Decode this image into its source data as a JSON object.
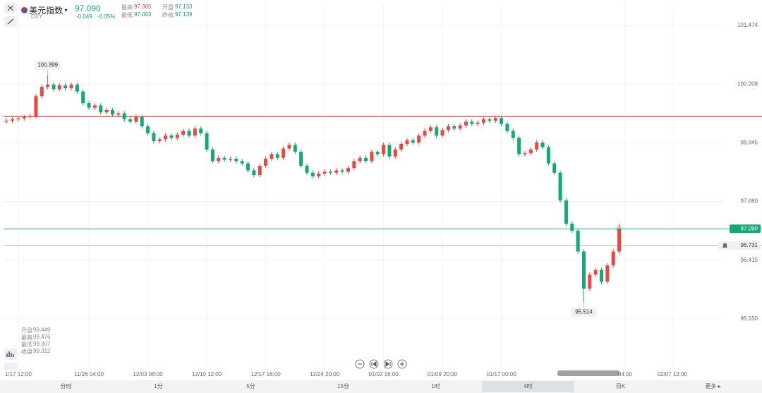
{
  "chart_data": {
    "type": "candlestick",
    "symbol": "美元指数",
    "code": "DXY",
    "last": "97.090",
    "change": "-0.049",
    "change_pct": "-0.05%",
    "stats": [
      {
        "label": "最高",
        "value": "97.305"
      },
      {
        "label": "开盘",
        "value": "97.133"
      },
      {
        "label": "最低",
        "value": "97.003"
      },
      {
        "label": "昨收",
        "value": "97.139"
      }
    ],
    "ohlc_info": [
      {
        "label": "开盘",
        "value": "99.449"
      },
      {
        "label": "最高",
        "value": "99.476"
      },
      {
        "label": "最低",
        "value": "99.307"
      },
      {
        "label": "收盘",
        "value": "99.312"
      }
    ],
    "categories": [
      null,
      null,
      "1/17 12:00",
      null,
      null,
      null,
      null,
      null,
      null,
      null,
      null,
      null,
      null,
      null,
      "11/26 04:00",
      null,
      null,
      null,
      null,
      null,
      null,
      null,
      null,
      null,
      "12/03 08:00",
      null,
      null,
      null,
      null,
      null,
      null,
      null,
      null,
      null,
      "12/10 12:00",
      null,
      null,
      null,
      null,
      null,
      null,
      null,
      null,
      null,
      "12/17 16:00",
      null,
      null,
      null,
      null,
      null,
      null,
      null,
      null,
      null,
      "12/24 20:00",
      null,
      null,
      null,
      null,
      null,
      null,
      null,
      null,
      null,
      "01/02 16:00",
      null,
      null,
      null,
      null,
      null,
      null,
      null,
      null,
      null,
      "01/09 20:00",
      null,
      null,
      null,
      null,
      null,
      null,
      null,
      null,
      null,
      "01/17 00:00",
      null,
      null,
      null,
      null,
      null,
      null,
      null,
      null,
      null,
      null,
      null,
      null,
      null,
      null,
      null,
      null,
      null,
      null,
      null,
      null,
      "04:00",
      null,
      null,
      null,
      null,
      null,
      null,
      null,
      "02/07 12:00",
      null,
      null,
      null,
      null,
      null,
      null,
      null
    ],
    "open": [
      99.4,
      99.42,
      99.45,
      99.47,
      99.5,
      99.52,
      99.95,
      100.15,
      100.2,
      100.1,
      100.18,
      100.12,
      100.2,
      100.05,
      99.8,
      99.7,
      99.75,
      99.6,
      99.65,
      99.55,
      99.58,
      99.45,
      99.4,
      99.5,
      99.3,
      99.15,
      98.98,
      99.02,
      99.1,
      99.05,
      99.12,
      99.2,
      99.1,
      99.25,
      99.15,
      98.8,
      98.55,
      98.62,
      98.58,
      98.6,
      98.55,
      98.5,
      98.35,
      98.25,
      98.45,
      98.6,
      98.7,
      98.62,
      98.82,
      98.9,
      98.75,
      98.45,
      98.3,
      98.22,
      98.28,
      98.32,
      98.3,
      98.35,
      98.32,
      98.4,
      98.55,
      98.62,
      98.55,
      98.75,
      98.7,
      98.9,
      98.65,
      98.8,
      98.92,
      99.0,
      98.95,
      99.1,
      99.2,
      99.28,
      99.1,
      99.22,
      99.3,
      99.25,
      99.32,
      99.4,
      99.35,
      99.38,
      99.45,
      99.42,
      99.48,
      99.35,
      99.2,
      99.05,
      98.7,
      98.72,
      98.8,
      98.95,
      98.85,
      98.5,
      98.3,
      97.7,
      97.2,
      97.05,
      96.6,
      95.8,
      96.1,
      96.2,
      95.95,
      96.3,
      96.6,
      null,
      null,
      null,
      null,
      null,
      null,
      null,
      null,
      null,
      null,
      null,
      null,
      null,
      null,
      null,
      null
    ],
    "high": [
      99.47,
      99.5,
      99.52,
      99.55,
      99.57,
      100.0,
      100.2,
      100.399,
      100.25,
      100.23,
      100.23,
      100.25,
      100.25,
      100.1,
      99.85,
      99.8,
      99.8,
      99.7,
      99.7,
      99.63,
      99.63,
      99.5,
      99.55,
      99.55,
      99.35,
      99.2,
      99.07,
      99.15,
      99.15,
      99.17,
      99.25,
      99.25,
      99.3,
      99.3,
      99.2,
      98.85,
      98.67,
      98.67,
      98.65,
      98.65,
      98.6,
      98.55,
      98.4,
      98.5,
      98.65,
      98.75,
      98.75,
      98.87,
      98.95,
      98.95,
      98.8,
      98.5,
      98.35,
      98.33,
      98.37,
      98.37,
      98.4,
      98.4,
      98.45,
      98.6,
      98.67,
      98.67,
      98.8,
      98.8,
      98.95,
      98.95,
      98.85,
      98.97,
      99.05,
      99.05,
      99.15,
      99.25,
      99.33,
      99.33,
      99.27,
      99.35,
      99.35,
      99.37,
      99.45,
      99.45,
      99.43,
      99.5,
      99.5,
      99.53,
      99.53,
      99.4,
      99.25,
      99.1,
      98.77,
      98.85,
      99.0,
      99.0,
      98.9,
      98.55,
      98.35,
      97.75,
      97.25,
      97.1,
      96.65,
      96.15,
      96.25,
      96.25,
      96.35,
      96.65,
      97.2,
      null,
      null,
      null,
      null,
      null,
      null,
      null,
      null,
      null,
      null,
      null,
      null,
      null,
      null,
      null,
      null
    ],
    "low": [
      99.35,
      99.37,
      99.4,
      99.42,
      99.45,
      99.47,
      99.9,
      100.1,
      100.05,
      100.05,
      100.07,
      100.07,
      100.0,
      99.75,
      99.65,
      99.65,
      99.55,
      99.55,
      99.5,
      99.5,
      99.4,
      99.35,
      99.35,
      99.25,
      99.1,
      98.93,
      98.93,
      98.97,
      99.0,
      99.0,
      99.07,
      99.05,
      99.05,
      99.1,
      98.75,
      98.5,
      98.5,
      98.53,
      98.53,
      98.5,
      98.45,
      98.3,
      98.2,
      98.2,
      98.4,
      98.55,
      98.57,
      98.57,
      98.77,
      98.7,
      98.4,
      98.25,
      98.17,
      98.17,
      98.23,
      98.25,
      98.25,
      98.27,
      98.27,
      98.35,
      98.5,
      98.5,
      98.5,
      98.65,
      98.65,
      98.6,
      98.6,
      98.75,
      98.87,
      98.9,
      98.9,
      99.05,
      99.15,
      99.05,
      99.05,
      99.17,
      99.2,
      99.2,
      99.27,
      99.3,
      99.3,
      99.33,
      99.37,
      99.37,
      99.3,
      99.15,
      99.0,
      98.65,
      98.65,
      98.67,
      98.75,
      98.8,
      98.45,
      98.25,
      97.65,
      97.15,
      97.0,
      96.55,
      95.514,
      95.75,
      96.05,
      95.9,
      95.9,
      96.25,
      96.55,
      null,
      null,
      null,
      null,
      null,
      null,
      null,
      null,
      null,
      null,
      null,
      null,
      null,
      null,
      null,
      null
    ],
    "close": [
      99.42,
      99.45,
      99.47,
      99.5,
      99.52,
      99.95,
      100.15,
      100.2,
      100.1,
      100.18,
      100.12,
      100.2,
      100.05,
      99.8,
      99.7,
      99.75,
      99.6,
      99.65,
      99.55,
      99.58,
      99.45,
      99.4,
      99.5,
      99.3,
      99.15,
      98.98,
      99.02,
      99.1,
      99.05,
      99.12,
      99.2,
      99.1,
      99.25,
      99.15,
      98.8,
      98.55,
      98.62,
      98.58,
      98.6,
      98.55,
      98.5,
      98.35,
      98.25,
      98.45,
      98.6,
      98.7,
      98.62,
      98.82,
      98.9,
      98.75,
      98.45,
      98.3,
      98.22,
      98.28,
      98.32,
      98.3,
      98.35,
      98.32,
      98.4,
      98.55,
      98.62,
      98.55,
      98.75,
      98.7,
      98.9,
      98.65,
      98.8,
      98.92,
      99.0,
      98.95,
      99.1,
      99.2,
      99.28,
      99.1,
      99.22,
      99.3,
      99.25,
      99.32,
      99.4,
      99.35,
      99.38,
      99.45,
      99.42,
      99.48,
      99.35,
      99.2,
      99.05,
      98.7,
      98.72,
      98.8,
      98.95,
      98.85,
      98.5,
      98.3,
      97.7,
      97.2,
      97.05,
      96.6,
      95.8,
      96.1,
      96.2,
      95.95,
      96.3,
      96.6,
      97.09,
      null,
      null,
      null,
      null,
      null,
      null,
      null,
      null,
      null,
      null,
      null,
      null,
      null,
      null,
      null,
      null
    ],
    "up_color": "#e8483f",
    "down_color": "#14a777",
    "ylim": [
      94.113,
      101.947
    ],
    "yticks": [
      101.474,
      100.209,
      98.945,
      {
        "value": 97.68,
        "label": "97.680"
      },
      96.415,
      {
        "value": 95.15,
        "label": "95.150"
      }
    ],
    "grid": true,
    "hlines": [
      {
        "value": 99.508,
        "color": "#e8483f"
      },
      {
        "value": 97.09,
        "label": "97.090",
        "color": "#14a777"
      },
      {
        "value": 96.731,
        "color": "#9a9a9a"
      }
    ],
    "timeframes": [
      "分时",
      "1分",
      "5分",
      "15分",
      "1时",
      "4时",
      "日K",
      "更多 ▸"
    ],
    "selected_timeframe": 5
  }
}
